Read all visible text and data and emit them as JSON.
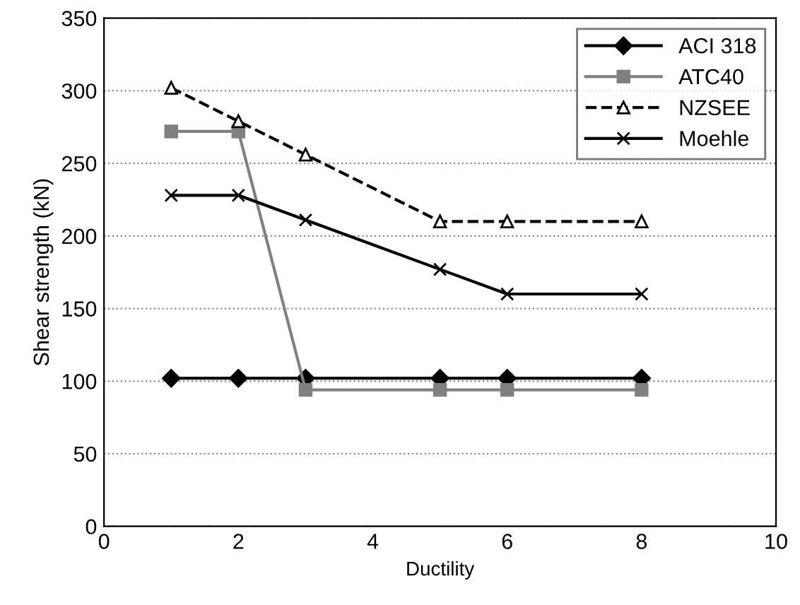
{
  "chart_data": {
    "type": "line",
    "xlabel": "Ductility",
    "ylabel": "Shear strength (kN)",
    "x": [
      1,
      2,
      3,
      5,
      6,
      8
    ],
    "series": [
      {
        "name": "ACI 318",
        "color": "#000000",
        "marker": "diamond",
        "line_style": "solid",
        "values": [
          102,
          102,
          102,
          102,
          102,
          102
        ]
      },
      {
        "name": "ATC40",
        "color": "#808080",
        "marker": "square",
        "line_style": "solid",
        "values": [
          272,
          272,
          94,
          94,
          94,
          94
        ]
      },
      {
        "name": "NZSEE",
        "color": "#000000",
        "marker": "triangle",
        "line_style": "dashed",
        "values": [
          302,
          279,
          256,
          210,
          210,
          210
        ]
      },
      {
        "name": "Moehle",
        "color": "#000000",
        "marker": "cross",
        "line_style": "solid",
        "values": [
          228,
          228,
          211,
          177,
          160,
          160
        ]
      }
    ],
    "xlim": [
      0,
      10
    ],
    "xticks": [
      0,
      2,
      4,
      6,
      8,
      10
    ],
    "ylim": [
      0,
      350
    ],
    "yticks": [
      0,
      50,
      100,
      150,
      200,
      250,
      300,
      350
    ],
    "grid": "y",
    "legend": "top right"
  }
}
